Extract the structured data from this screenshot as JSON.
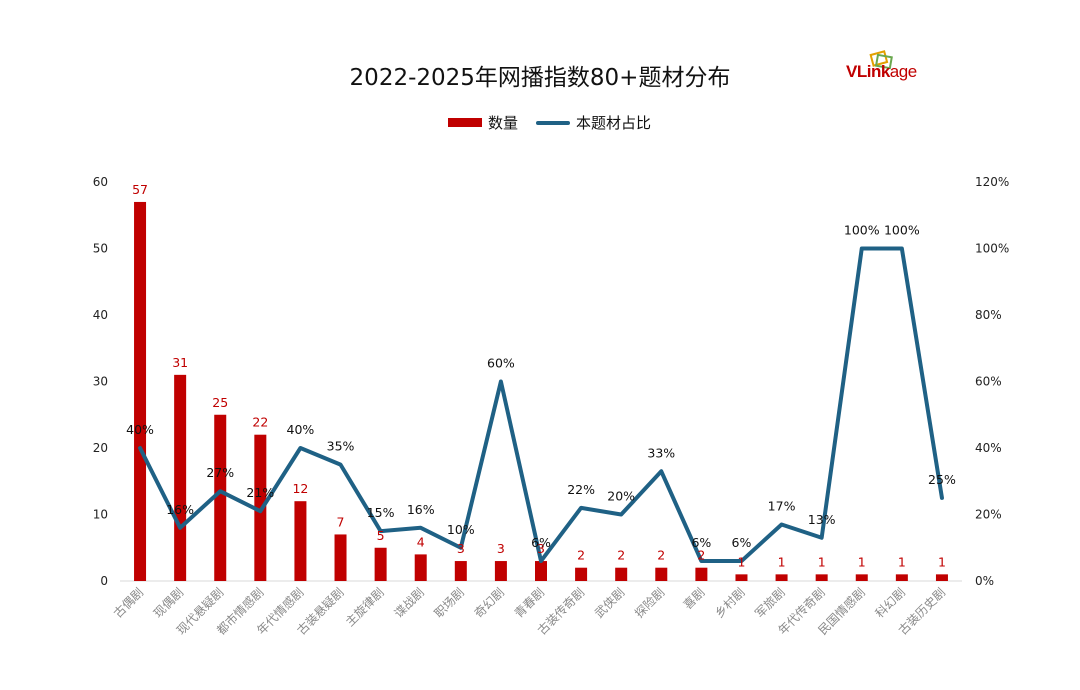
{
  "title": "2022-2025年网播指数80+题材分布",
  "logo": {
    "text_main": "VLink",
    "text_tail": "age",
    "color": "#c00000"
  },
  "legend": {
    "bar_label": "数量",
    "line_label": "本题材占比"
  },
  "colors": {
    "bar": "#c00000",
    "line": "#1f6185"
  },
  "chart_data": {
    "type": "bar+line",
    "title": "2022-2025年网播指数80+题材分布",
    "categories": [
      "古偶剧",
      "现偶剧",
      "现代悬疑剧",
      "都市情感剧",
      "年代情感剧",
      "古装悬疑剧",
      "主旋律剧",
      "谍战剧",
      "职场剧",
      "奇幻剧",
      "青春剧",
      "古装传奇剧",
      "武侠剧",
      "探险剧",
      "喜剧",
      "乡村剧",
      "军旅剧",
      "年代传奇剧",
      "民国情感剧",
      "科幻剧",
      "古装历史剧"
    ],
    "series": [
      {
        "name": "数量",
        "type": "bar",
        "axis": "left",
        "values": [
          57,
          31,
          25,
          22,
          12,
          7,
          5,
          4,
          3,
          3,
          3,
          2,
          2,
          2,
          2,
          1,
          1,
          1,
          1,
          1,
          1
        ],
        "labels": [
          "57",
          "31",
          "25",
          "22",
          "12",
          "7",
          "5",
          "4",
          "3",
          "3",
          "3",
          "2",
          "2",
          "2",
          "2",
          "1",
          "1",
          "1",
          "1",
          "1",
          "1"
        ]
      },
      {
        "name": "本题材占比",
        "type": "line",
        "axis": "right",
        "values": [
          40,
          16,
          27,
          21,
          40,
          35,
          15,
          16,
          10,
          60,
          6,
          22,
          20,
          33,
          6,
          6,
          17,
          13,
          100,
          100,
          25
        ],
        "labels": [
          "40%",
          "16%",
          "27%",
          "21%",
          "40%",
          "35%",
          "15%",
          "16%",
          "10%",
          "60%",
          "6%",
          "22%",
          "20%",
          "33%",
          "6%",
          "6%",
          "17%",
          "13%",
          "100%",
          "100%",
          "25%"
        ]
      }
    ],
    "y_left": {
      "min": 0,
      "max": 60,
      "ticks": [
        "0",
        "10",
        "20",
        "30",
        "40",
        "50",
        "60"
      ]
    },
    "y_right": {
      "min": 0,
      "max": 120,
      "ticks": [
        "0%",
        "20%",
        "40%",
        "60%",
        "80%",
        "100%",
        "120%"
      ]
    },
    "grid": false,
    "legend_position": "top-center"
  }
}
